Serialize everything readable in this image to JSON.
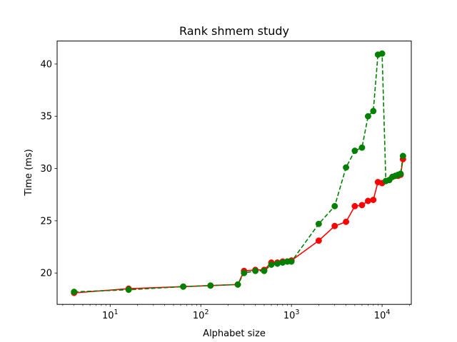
{
  "chart_data": {
    "type": "line",
    "title": "Rank shmem study",
    "xlabel": "Alphabet size",
    "ylabel": "Time (ms)",
    "xscale": "log",
    "xlim": [
      2.6,
      21000
    ],
    "ylim": [
      17.0,
      42.2
    ],
    "yticks": [
      20,
      25,
      30,
      35,
      40
    ],
    "xticks": [
      {
        "value": 10,
        "base": "10",
        "exp": "1"
      },
      {
        "value": 100,
        "base": "10",
        "exp": "2"
      },
      {
        "value": 1000,
        "base": "10",
        "exp": "3"
      },
      {
        "value": 10000,
        "base": "10",
        "exp": "4"
      }
    ],
    "grid": false,
    "series": [
      {
        "color": "#ff0000",
        "linestyle": "solid",
        "marker": "circle",
        "points": [
          [
            4,
            18.1
          ],
          [
            16,
            18.5
          ],
          [
            64,
            18.7
          ],
          [
            128,
            18.8
          ],
          [
            256,
            18.9
          ],
          [
            300,
            20.2
          ],
          [
            400,
            20.3
          ],
          [
            500,
            20.3
          ],
          [
            600,
            21.0
          ],
          [
            700,
            21.0
          ],
          [
            800,
            21.1
          ],
          [
            900,
            21.1
          ],
          [
            1000,
            21.2
          ],
          [
            2000,
            23.1
          ],
          [
            3000,
            24.5
          ],
          [
            4000,
            24.9
          ],
          [
            5000,
            26.4
          ],
          [
            6000,
            26.5
          ],
          [
            7000,
            26.9
          ],
          [
            8000,
            27.0
          ],
          [
            9000,
            28.7
          ],
          [
            10000,
            28.6
          ],
          [
            11000,
            28.8
          ],
          [
            12000,
            28.9
          ],
          [
            13000,
            29.2
          ],
          [
            14000,
            29.3
          ],
          [
            15000,
            29.3
          ],
          [
            16000,
            29.4
          ],
          [
            17000,
            30.9
          ]
        ]
      },
      {
        "color": "#008000",
        "linestyle": "dashed",
        "marker": "circle",
        "points": [
          [
            4,
            18.2
          ],
          [
            16,
            18.4
          ],
          [
            64,
            18.7
          ],
          [
            128,
            18.8
          ],
          [
            256,
            18.9
          ],
          [
            300,
            20.0
          ],
          [
            400,
            20.2
          ],
          [
            500,
            20.2
          ],
          [
            600,
            20.8
          ],
          [
            700,
            20.9
          ],
          [
            800,
            21.0
          ],
          [
            900,
            21.1
          ],
          [
            1000,
            21.1
          ],
          [
            2000,
            24.7
          ],
          [
            3000,
            26.4
          ],
          [
            4000,
            30.1
          ],
          [
            5000,
            31.7
          ],
          [
            6000,
            32.0
          ],
          [
            7000,
            35.0
          ],
          [
            8000,
            35.5
          ],
          [
            9000,
            40.9
          ],
          [
            10000,
            41.0
          ],
          [
            11000,
            28.8
          ],
          [
            12000,
            28.9
          ],
          [
            13000,
            29.2
          ],
          [
            14000,
            29.3
          ],
          [
            15000,
            29.4
          ],
          [
            16000,
            29.5
          ],
          [
            17000,
            31.2
          ]
        ]
      }
    ]
  }
}
